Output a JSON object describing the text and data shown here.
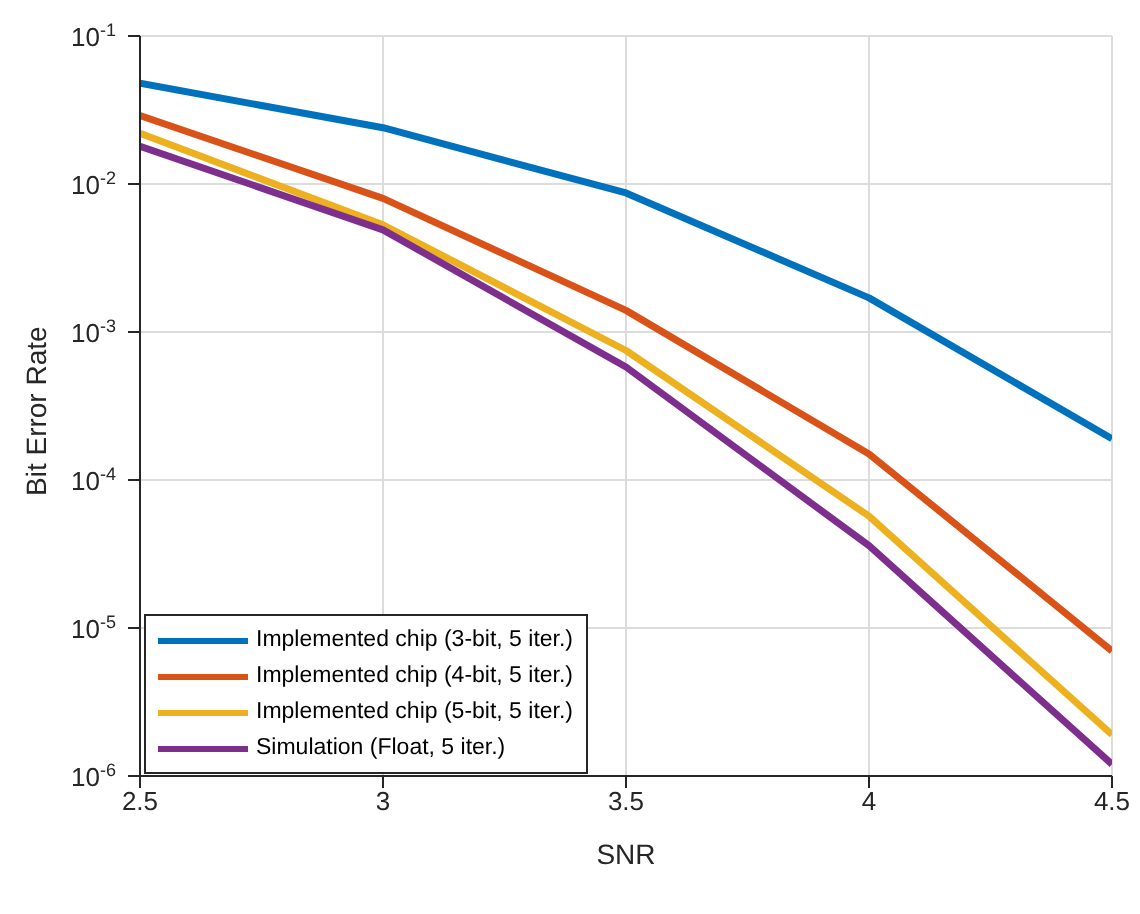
{
  "chart_data": {
    "type": "line",
    "xlabel": "SNR",
    "ylabel": "Bit Error Rate",
    "x": [
      2.5,
      3,
      3.5,
      4,
      4.5
    ],
    "series": [
      {
        "name": "Implemented chip (3-bit, 5 iter.)",
        "color": "#0072bd",
        "values": [
          0.048,
          0.024,
          0.0087,
          0.0017,
          0.00019
        ]
      },
      {
        "name": "Implemented chip (4-bit, 5 iter.)",
        "color": "#d95319",
        "values": [
          0.029,
          0.008,
          0.0014,
          0.00015,
          7e-06
        ]
      },
      {
        "name": "Implemented chip (5-bit, 5 iter.)",
        "color": "#edb120",
        "values": [
          0.022,
          0.0053,
          0.00075,
          5.7e-05,
          1.9e-06
        ]
      },
      {
        "name": "Simulation (Float, 5 iter.)",
        "color": "#7e2f8e",
        "values": [
          0.018,
          0.0049,
          0.00058,
          3.6e-05,
          1.2e-06
        ]
      }
    ],
    "log": "y",
    "xlim": [
      2.5,
      4.5
    ],
    "xticks": [
      2.5,
      3,
      3.5,
      4,
      4.5
    ],
    "ylim": [
      1e-06,
      0.1
    ],
    "yticks": [
      {
        "value": 1e-06,
        "label": "10$^{-6}$"
      },
      {
        "value": 1e-05,
        "label": "10$^{-5}$"
      },
      {
        "value": 0.0001,
        "label": "10$^{-4}$"
      },
      {
        "value": 0.001,
        "label": "10$^{-3}$"
      },
      {
        "value": 0.01,
        "label": "10$^{-2}$"
      },
      {
        "value": 0.1,
        "label": "10$^{-1}$"
      }
    ],
    "grid": true,
    "legend": "bottom left",
    "marker": "none",
    "line_style": "solid"
  }
}
